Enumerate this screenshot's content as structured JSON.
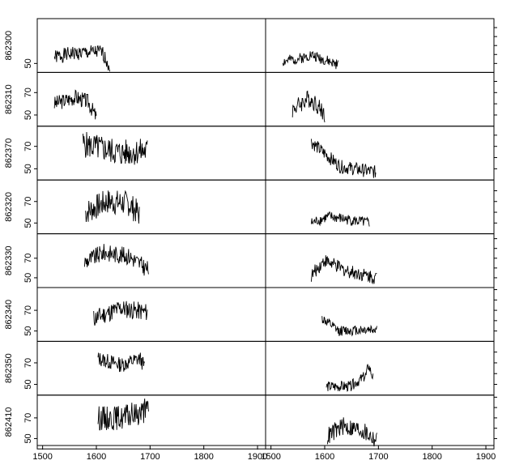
{
  "chart_data": {
    "type": "line",
    "xlim": [
      1490,
      1915
    ],
    "x_ticks": [
      "1500",
      "1600",
      "1700",
      "1800",
      "1900"
    ],
    "columns": 2,
    "panels": [
      {
        "ylabel": "862300",
        "y_ticks": [
          "50"
        ],
        "ylim": [
          40,
          100
        ],
        "left": {
          "x_start": 1522,
          "x_end": 1625,
          "base": 57,
          "amp": 8,
          "trend": [
            [
              0,
              0
            ],
            [
              0.3,
              4
            ],
            [
              0.6,
              5
            ],
            [
              0.85,
              6
            ],
            [
              1,
              -10
            ]
          ],
          "seed": 1
        },
        "right": {
          "x_start": 1522,
          "x_end": 1625,
          "base": 52,
          "amp": 6,
          "trend": [
            [
              0,
              0
            ],
            [
              0.4,
              5
            ],
            [
              0.5,
              8
            ],
            [
              1,
              -4
            ]
          ],
          "seed": 2
        }
      },
      {
        "ylabel": "862310",
        "y_ticks": [
          "50",
          "70"
        ],
        "ylim": [
          40,
          88
        ],
        "left": {
          "x_start": 1522,
          "x_end": 1600,
          "base": 60,
          "amp": 7,
          "trend": [
            [
              0,
              0
            ],
            [
              0.5,
              6
            ],
            [
              0.8,
              2
            ],
            [
              1,
              -12
            ]
          ],
          "seed": 3
        },
        "right": {
          "x_start": 1540,
          "x_end": 1600,
          "base": 55,
          "amp": 8,
          "trend": [
            [
              0,
              0
            ],
            [
              0.5,
              10
            ],
            [
              0.7,
              6
            ],
            [
              1,
              -4
            ]
          ],
          "seed": 4
        }
      },
      {
        "ylabel": "862370",
        "y_ticks": [
          "50",
          "70"
        ],
        "ylim": [
          40,
          88
        ],
        "left": {
          "x_start": 1575,
          "x_end": 1695,
          "base": 66,
          "amp": 12,
          "trend": [
            [
              0,
              6
            ],
            [
              0.3,
              2
            ],
            [
              0.6,
              -2
            ],
            [
              1,
              0
            ]
          ],
          "seed": 5
        },
        "right": {
          "x_start": 1575,
          "x_end": 1695,
          "base": 48,
          "amp": 6,
          "trend": [
            [
              0,
              26
            ],
            [
              0.2,
              16
            ],
            [
              0.45,
              4
            ],
            [
              1,
              -1
            ]
          ],
          "seed": 6
        }
      },
      {
        "ylabel": "862320",
        "y_ticks": [
          "50",
          "70"
        ],
        "ylim": [
          40,
          90
        ],
        "left": {
          "x_start": 1580,
          "x_end": 1680,
          "base": 64,
          "amp": 12,
          "trend": [
            [
              0,
              -4
            ],
            [
              0.4,
              6
            ],
            [
              0.8,
              4
            ],
            [
              1,
              -6
            ]
          ],
          "seed": 7
        },
        "right": {
          "x_start": 1575,
          "x_end": 1683,
          "base": 50,
          "amp": 5,
          "trend": [
            [
              0,
              0
            ],
            [
              0.3,
              6
            ],
            [
              1,
              0
            ]
          ],
          "seed": 8
        }
      },
      {
        "ylabel": "862330",
        "y_ticks": [
          "50",
          "70"
        ],
        "ylim": [
          40,
          95
        ],
        "left": {
          "x_start": 1578,
          "x_end": 1697,
          "base": 70,
          "amp": 9,
          "trend": [
            [
              0,
              -4
            ],
            [
              0.3,
              6
            ],
            [
              0.7,
              2
            ],
            [
              1,
              -12
            ]
          ],
          "seed": 9
        },
        "right": {
          "x_start": 1575,
          "x_end": 1697,
          "base": 52,
          "amp": 7,
          "trend": [
            [
              0,
              0
            ],
            [
              0.2,
              16
            ],
            [
              0.5,
              6
            ],
            [
              1,
              -2
            ]
          ],
          "seed": 10
        }
      },
      {
        "ylabel": "862340",
        "y_ticks": [
          "50",
          "70"
        ],
        "ylim": [
          40,
          92
        ],
        "left": {
          "x_start": 1595,
          "x_end": 1695,
          "base": 66,
          "amp": 9,
          "trend": [
            [
              0,
              -4
            ],
            [
              0.5,
              6
            ],
            [
              1,
              2
            ]
          ],
          "seed": 11
        },
        "right": {
          "x_start": 1595,
          "x_end": 1697,
          "base": 50,
          "amp": 5,
          "trend": [
            [
              0,
              12
            ],
            [
              0.3,
              0
            ],
            [
              1,
              2
            ]
          ],
          "seed": 12
        }
      },
      {
        "ylabel": "862350",
        "y_ticks": [
          "50",
          "70"
        ],
        "ylim": [
          40,
          90
        ],
        "left": {
          "x_start": 1603,
          "x_end": 1690,
          "base": 70,
          "amp": 7,
          "trend": [
            [
              0,
              4
            ],
            [
              0.5,
              -2
            ],
            [
              0.9,
              4
            ],
            [
              1,
              -4
            ]
          ],
          "seed": 13
        },
        "right": {
          "x_start": 1603,
          "x_end": 1690,
          "base": 48,
          "amp": 5,
          "trend": [
            [
              0,
              0
            ],
            [
              0.5,
              0
            ],
            [
              0.85,
              10
            ],
            [
              0.9,
              20
            ],
            [
              1,
              8
            ]
          ],
          "seed": 14
        }
      },
      {
        "ylabel": "862410",
        "y_ticks": [
          "50",
          "70"
        ],
        "ylim": [
          40,
          92
        ],
        "left": {
          "x_start": 1603,
          "x_end": 1697,
          "base": 66,
          "amp": 12,
          "trend": [
            [
              0,
              4
            ],
            [
              0.5,
              4
            ],
            [
              1,
              12
            ]
          ],
          "seed": 15
        },
        "right": {
          "x_start": 1605,
          "x_end": 1697,
          "base": 56,
          "amp": 9,
          "trend": [
            [
              0,
              -4
            ],
            [
              0.3,
              6
            ],
            [
              0.7,
              2
            ],
            [
              1,
              -8
            ]
          ],
          "seed": 16
        }
      }
    ]
  }
}
